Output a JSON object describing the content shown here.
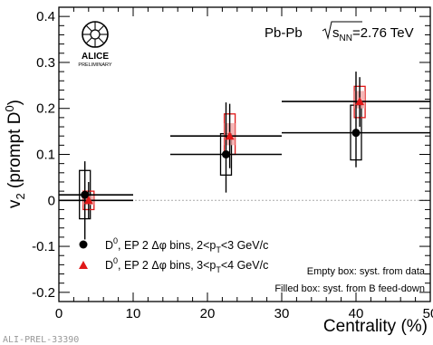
{
  "chart_data": {
    "type": "scatter",
    "ylabel": "v",
    "ylabel_sub": "2",
    "ylabel_rest": " (prompt D",
    "ylabel_sup": "0",
    "ylabel_end": ")",
    "xlabel": "Centrality (%)",
    "xlim": [
      0,
      50
    ],
    "ylim": [
      -0.22,
      0.42
    ],
    "x_ticks": [
      "0",
      "10",
      "20",
      "30",
      "40",
      "50"
    ],
    "y_ticks": [
      "-0.2",
      "-0.1",
      "0",
      "0.1",
      "0.2",
      "0.3",
      "0.4"
    ],
    "reference_line": 0,
    "series": [
      {
        "name": "D0, EP 2 Δφ bins, 2<pT<3 GeV/c",
        "marker": "circle",
        "color": "#000000",
        "points": [
          {
            "x": 3.5,
            "x_lo": 0,
            "x_hi": 10,
            "y": 0.012,
            "stat_lo": -0.085,
            "stat_hi": 0.085,
            "syst_lo": -0.04,
            "syst_hi": 0.065
          },
          {
            "x": 22.5,
            "x_lo": 15,
            "x_hi": 30,
            "y": 0.1,
            "stat_lo": 0.017,
            "stat_hi": 0.213,
            "syst_lo": 0.055,
            "syst_hi": 0.145
          },
          {
            "x": 40.0,
            "x_lo": 30,
            "x_hi": 50,
            "y": 0.147,
            "stat_lo": 0.072,
            "stat_hi": 0.28,
            "syst_lo": 0.088,
            "syst_hi": 0.207
          }
        ]
      },
      {
        "name": "D0, EP 2 Δφ bins, 3<pT<4 GeV/c",
        "marker": "triangle",
        "color": "#e01818",
        "points": [
          {
            "x": 4.0,
            "x_lo": 0,
            "x_hi": 10,
            "y": 0.0,
            "stat_lo": -0.04,
            "stat_hi": 0.04,
            "syst_lo": -0.02,
            "syst_hi": 0.02,
            "fd_lo": -0.01,
            "fd_hi": 0.01
          },
          {
            "x": 23.0,
            "x_lo": 15,
            "x_hi": 30,
            "y": 0.14,
            "stat_lo": 0.07,
            "stat_hi": 0.21,
            "syst_lo": 0.1,
            "syst_hi": 0.188,
            "fd_lo": 0.12,
            "fd_hi": 0.168
          },
          {
            "x": 40.5,
            "x_lo": 30,
            "x_hi": 50,
            "y": 0.215,
            "stat_lo": 0.16,
            "stat_hi": 0.268,
            "syst_lo": 0.18,
            "syst_hi": 0.248,
            "fd_lo": 0.2,
            "fd_hi": 0.238
          }
        ]
      }
    ],
    "legend_placement": "bottom-left",
    "grid": false
  },
  "texts": {
    "system": "Pb-Pb",
    "energy_pre": "s",
    "energy_sub": "NN",
    "energy_post": "=2.76 TeV",
    "alice_logo_word": "ALICE",
    "alice_logo_sub": "PRELIMINARY",
    "legend1_a": "D",
    "legend1_sup": "0",
    "legend1_b": ", EP 2 Δφ bins, 2<p",
    "legend1_sub": "T",
    "legend1_c": "<3 GeV/c",
    "legend2_a": "D",
    "legend2_sup": "0",
    "legend2_b": ", EP 2 Δφ bins, 3<p",
    "legend2_sub": "T",
    "legend2_c": "<4 GeV/c",
    "note1": "Empty box: syst. from data",
    "note2": "Filled box: syst. from B feed-down",
    "footer": "ALI-PREL-33390"
  }
}
